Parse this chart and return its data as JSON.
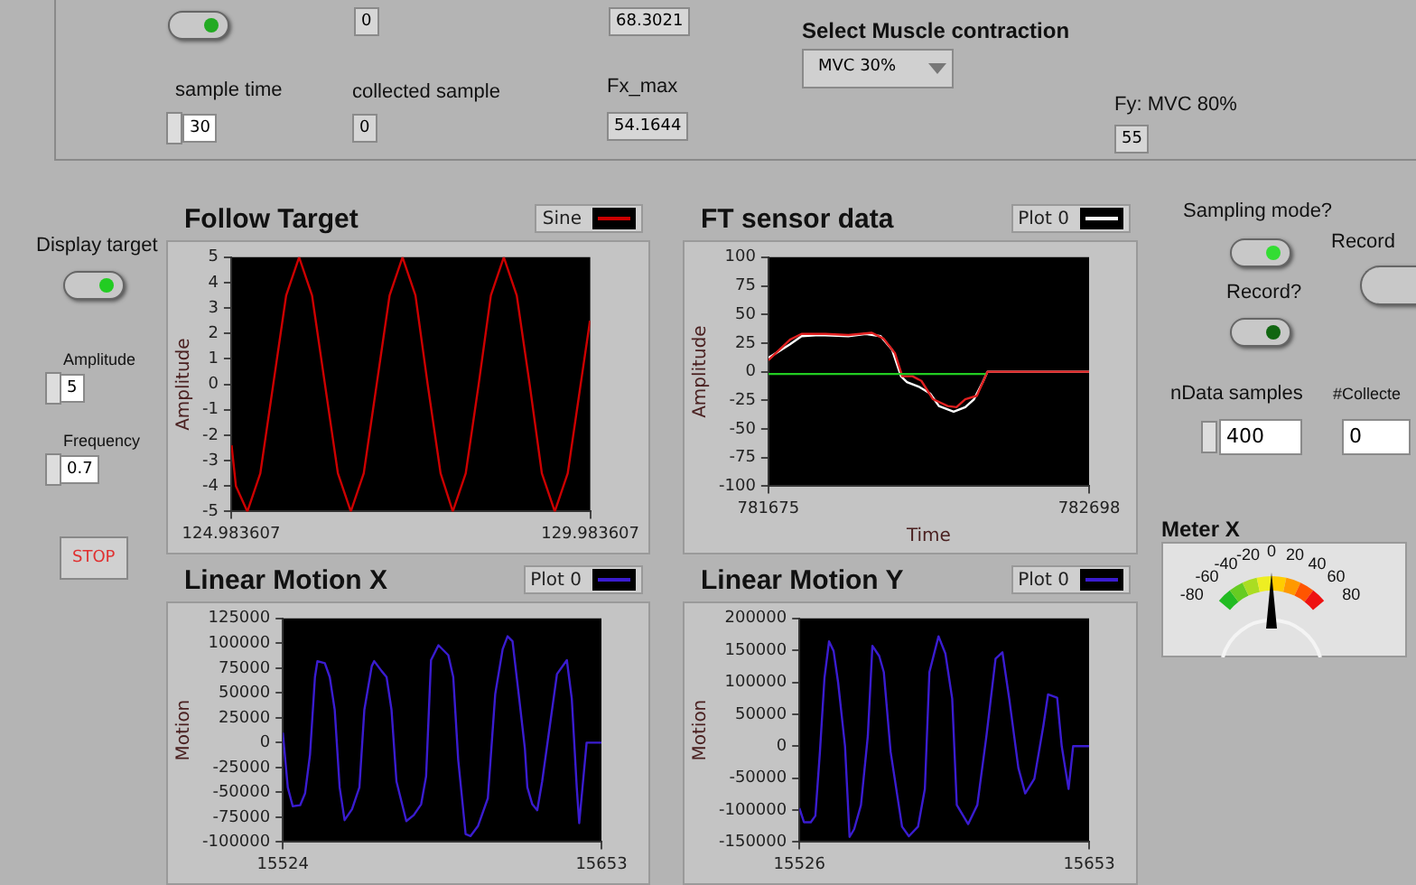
{
  "chart_data": [
    {
      "type": "line",
      "title": "Follow Target",
      "ylabel": "Amplitude",
      "legend": "top right",
      "xlim": [
        124.983607,
        129.983607
      ],
      "xticks": [
        124.983607,
        129.983607
      ],
      "ylim": [
        -5,
        5
      ],
      "yticks": [
        -5,
        -4,
        -3,
        -2,
        -1,
        0,
        1,
        2,
        3,
        4,
        5
      ],
      "grid": false,
      "series": [
        {
          "name": "Sine",
          "color": "#cc0000",
          "x": [
            124.99,
            125.05,
            125.21,
            125.39,
            125.57,
            125.75,
            125.93,
            126.11,
            126.29,
            126.47,
            126.65,
            126.83,
            127.01,
            127.19,
            127.37,
            127.55,
            127.72,
            127.9,
            128.07,
            128.25,
            128.43,
            128.6,
            128.78,
            128.96,
            129.14,
            129.31,
            129.49,
            129.67,
            129.85,
            129.98
          ],
          "values": [
            -2.4,
            -4,
            -5,
            -3.5,
            0,
            3.5,
            5,
            3.5,
            0,
            -3.5,
            -5,
            -3.5,
            0,
            3.5,
            5,
            3.5,
            0,
            -3.5,
            -5,
            -3.5,
            0,
            3.5,
            5,
            3.5,
            0,
            -3.5,
            -5,
            -3.5,
            0,
            2.5
          ]
        }
      ]
    },
    {
      "type": "line",
      "title": "FT sensor data",
      "xlabel": "Time",
      "ylabel": "Amplitude",
      "legend": "top right",
      "xlim": [
        781675,
        782698
      ],
      "xticks": [
        781675,
        782698
      ],
      "ylim": [
        -100,
        100
      ],
      "yticks": [
        -100,
        -75,
        -50,
        -25,
        0,
        25,
        50,
        75,
        100
      ],
      "grid": false,
      "series": [
        {
          "color": "#22cc22",
          "x": [
            781675,
            782368
          ],
          "values": [
            -2,
            -2
          ]
        },
        {
          "color": "#e02020",
          "x": [
            781675,
            781744,
            781781,
            781856,
            781930,
            782005,
            782042,
            782079,
            782102,
            782135,
            782163,
            782200,
            782247,
            782275,
            782303,
            782340,
            782374,
            782698
          ],
          "values": [
            10,
            28,
            33,
            33,
            32,
            34,
            29,
            16,
            -4,
            -4,
            -8,
            -24,
            -30,
            -31,
            -24,
            -21,
            0,
            0
          ]
        },
        {
          "name": "Plot 0",
          "color": "#ffffff",
          "x": [
            781675,
            781744,
            781781,
            781837,
            781930,
            781986,
            782033,
            782070,
            782098,
            782117,
            782154,
            782191,
            782219,
            782266,
            782303,
            782331,
            782359,
            782374,
            782489,
            782698
          ],
          "values": [
            12,
            24,
            31,
            32,
            31,
            33,
            31,
            19,
            -4,
            -9,
            -13,
            -19,
            -30,
            -35,
            -31,
            -24,
            -9,
            0,
            0,
            0
          ]
        }
      ]
    },
    {
      "type": "line",
      "title": "Linear  Motion  X",
      "ylabel": "Motion",
      "legend": "top right",
      "xlim": [
        15524,
        15653
      ],
      "xticks": [
        15524,
        15653
      ],
      "ylim": [
        -100000,
        125000
      ],
      "yticks": [
        -100000,
        -75000,
        -50000,
        -25000,
        0,
        25000,
        50000,
        75000,
        100000,
        125000
      ],
      "grid": false,
      "series": [
        {
          "name": "Plot 0",
          "color": "#3a1cd0",
          "x": [
            15524,
            15526,
            15528,
            15531,
            15533,
            15535,
            15537,
            15538,
            15541,
            15543,
            15545,
            15547,
            15549,
            15552,
            15555,
            15557,
            15560,
            15561,
            15564,
            15566,
            15568,
            15570,
            15574,
            15577,
            15580,
            15582,
            15584,
            15587,
            15591,
            15593,
            15595,
            15598,
            15600,
            15603,
            15607,
            15610,
            15613,
            15615,
            15617,
            15620,
            15622,
            15623,
            15625,
            15627,
            15629,
            15635,
            15639,
            15641,
            15643,
            15644,
            15647,
            15653
          ],
          "values": [
            10000,
            -45000,
            -64000,
            -63000,
            -51000,
            -12000,
            66000,
            82000,
            80000,
            66000,
            33000,
            -45000,
            -78000,
            -67000,
            -45000,
            33000,
            77000,
            82000,
            72000,
            66000,
            33000,
            -39000,
            -79000,
            -73000,
            -62000,
            -34000,
            83000,
            98000,
            88000,
            66000,
            -17000,
            -92000,
            -94000,
            -84000,
            -56000,
            49000,
            94000,
            107000,
            102000,
            38000,
            -6000,
            -45000,
            -62000,
            -68000,
            -39000,
            69000,
            83000,
            44000,
            -45000,
            -81000,
            0,
            0
          ]
        }
      ]
    },
    {
      "type": "line",
      "title": "Linear  Motion Y",
      "ylabel": "Motion",
      "legend": "top right",
      "xlim": [
        15526,
        15653
      ],
      "xticks": [
        15526,
        15653
      ],
      "ylim": [
        -150000,
        200000
      ],
      "yticks": [
        -150000,
        -100000,
        -50000,
        0,
        50000,
        100000,
        150000,
        200000
      ],
      "grid": false,
      "series": [
        {
          "name": "Plot 0",
          "color": "#3a1cd0",
          "x": [
            15526,
            15528,
            15531,
            15533,
            15535,
            15537,
            15539,
            15541,
            15543,
            15546,
            15548,
            15550,
            15553,
            15556,
            15558,
            15561,
            15563,
            15566,
            15571,
            15574,
            15578,
            15581,
            15583,
            15587,
            15590,
            15593,
            15595,
            15600,
            15604,
            15608,
            15612,
            15615,
            15618,
            15622,
            15625,
            15629,
            15633,
            15635,
            15639,
            15641,
            15644,
            15646,
            15653
          ],
          "values": [
            -97000,
            -119000,
            -119000,
            -109000,
            -9000,
            107000,
            164000,
            149000,
            99000,
            0,
            -142000,
            -130000,
            -92000,
            16000,
            157000,
            141000,
            116000,
            -9000,
            -126000,
            -141000,
            -126000,
            -67000,
            116000,
            172000,
            145000,
            74000,
            -92000,
            -122000,
            -92000,
            16000,
            137000,
            147000,
            74000,
            -34000,
            -74000,
            -51000,
            33000,
            81000,
            76000,
            0,
            -67000,
            0,
            0
          ]
        }
      ]
    },
    {
      "type": "other",
      "annotations": [
        "0",
        "68.3021",
        "Select Muscle contraction",
        "MVC 30%",
        "sample time",
        "30",
        "collected sample",
        "0",
        "Fx_max",
        "54.1644",
        "Fy: MVC 80%",
        "55",
        "Display target",
        "Amplitude",
        "5",
        "Frequency",
        "0.7",
        "STOP",
        "Sampling mode?",
        "Record",
        "Record?",
        "nData samples",
        "400",
        "#Collecte",
        "0",
        "Meter X",
        "-80",
        "-60",
        "-40",
        "-20",
        "0",
        "20",
        "40",
        "60",
        "80"
      ]
    }
  ]
}
